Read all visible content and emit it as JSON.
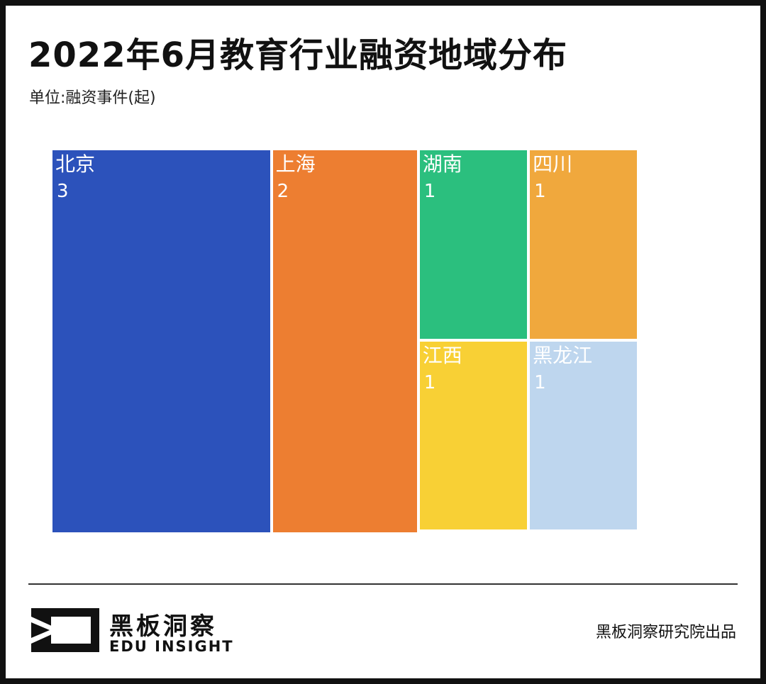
{
  "header": {
    "title": "2022年6月教育行业融资地域分布",
    "unit": "单位:融资事件(起)"
  },
  "chart_data": {
    "type": "treemap",
    "title": "2022年6月教育行业融资地域分布",
    "unit": "单位:融资事件(起)",
    "items": [
      {
        "name": "北京",
        "value": 3,
        "color": "#2c52bb"
      },
      {
        "name": "上海",
        "value": 2,
        "color": "#ed7e31"
      },
      {
        "name": "湖南",
        "value": 1,
        "color": "#2bbf7e"
      },
      {
        "name": "四川",
        "value": 1,
        "color": "#f0a83d"
      },
      {
        "name": "江西",
        "value": 1,
        "color": "#f8d035"
      },
      {
        "name": "黑龙江",
        "value": 1,
        "color": "#bed6ee"
      }
    ]
  },
  "footer": {
    "brand_cn": "黑板洞察",
    "brand_en": "EDU INSIGHT",
    "producer": "黑板洞察研究院出品"
  }
}
